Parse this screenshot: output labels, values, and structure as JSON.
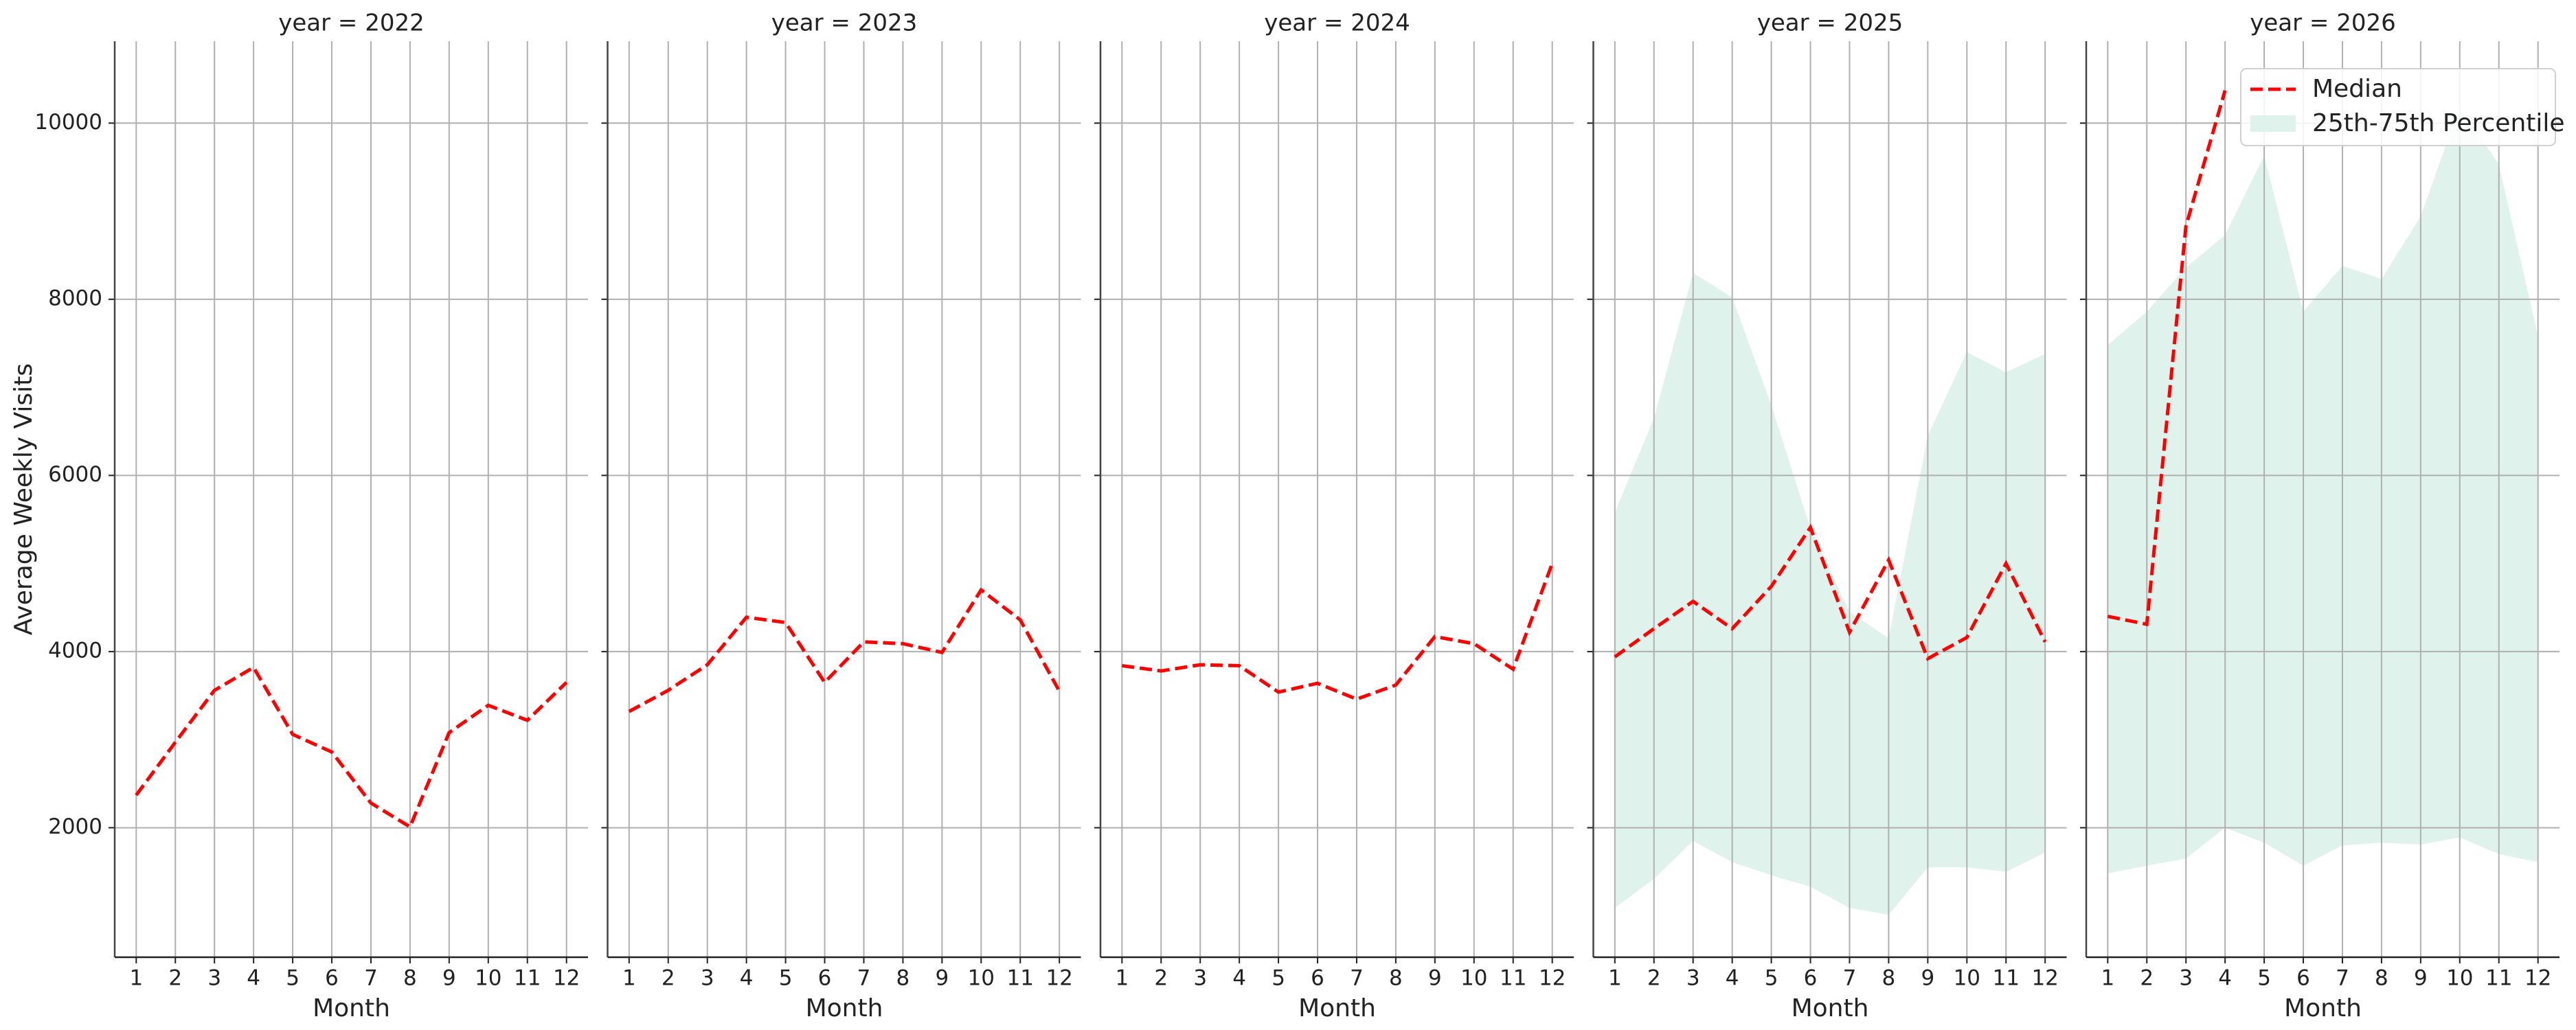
{
  "chart_data": [
    {
      "type": "line",
      "title": "year = 2022",
      "xlabel": "Month",
      "ylabel": "Average Weekly Visits",
      "x": [
        1,
        2,
        3,
        4,
        5,
        6,
        7,
        8,
        9,
        10,
        11,
        12
      ],
      "xlim": [
        0.45,
        12.55
      ],
      "xticks": [
        1,
        2,
        3,
        4,
        5,
        6,
        7,
        8,
        9,
        10,
        11,
        12
      ],
      "ylim": [
        530,
        10930
      ],
      "yticks": [
        2000,
        4000,
        6000,
        8000,
        10000
      ],
      "show_ytick_labels": true,
      "grid": true,
      "series": [
        {
          "color": "#ff0000",
          "values": [
            2370,
            2970,
            3560,
            3820,
            3060,
            2860,
            2280,
            2010,
            3080,
            3390,
            3220,
            3650
          ]
        }
      ]
    },
    {
      "type": "line",
      "title": "year = 2023",
      "xlabel": "Month",
      "x": [
        1,
        2,
        3,
        4,
        5,
        6,
        7,
        8,
        9,
        10,
        11,
        12
      ],
      "xlim": [
        0.45,
        12.55
      ],
      "xticks": [
        1,
        2,
        3,
        4,
        5,
        6,
        7,
        8,
        9,
        10,
        11,
        12
      ],
      "ylim": [
        530,
        10930
      ],
      "yticks": [
        2000,
        4000,
        6000,
        8000,
        10000
      ],
      "show_ytick_labels": false,
      "grid": true,
      "series": [
        {
          "color": "#ff0000",
          "values": [
            3320,
            3560,
            3850,
            4390,
            4330,
            3650,
            4110,
            4090,
            3990,
            4700,
            4360,
            3550
          ]
        }
      ]
    },
    {
      "type": "line",
      "title": "year = 2024",
      "xlabel": "Month",
      "x": [
        1,
        2,
        3,
        4,
        5,
        6,
        7,
        8,
        9,
        10,
        11,
        12
      ],
      "xlim": [
        0.45,
        12.55
      ],
      "xticks": [
        1,
        2,
        3,
        4,
        5,
        6,
        7,
        8,
        9,
        10,
        11,
        12
      ],
      "ylim": [
        530,
        10930
      ],
      "yticks": [
        2000,
        4000,
        6000,
        8000,
        10000
      ],
      "show_ytick_labels": false,
      "grid": true,
      "series": [
        {
          "color": "#ff0000",
          "values": [
            3840,
            3780,
            3850,
            3840,
            3540,
            3640,
            3460,
            3620,
            4170,
            4090,
            3800,
            5000
          ]
        }
      ]
    },
    {
      "type": "line",
      "title": "year = 2025",
      "xlabel": "Month",
      "x": [
        1,
        2,
        3,
        4,
        5,
        6,
        7,
        8,
        9,
        10,
        11,
        12
      ],
      "xlim": [
        0.45,
        12.55
      ],
      "xticks": [
        1,
        2,
        3,
        4,
        5,
        6,
        7,
        8,
        9,
        10,
        11,
        12
      ],
      "ylim": [
        530,
        10930
      ],
      "yticks": [
        2000,
        4000,
        6000,
        8000,
        10000
      ],
      "show_ytick_labels": false,
      "grid": true,
      "band": {
        "color": "#dff2ec",
        "lower": [
          1090,
          1420,
          1850,
          1610,
          1460,
          1330,
          1090,
          1010,
          1550,
          1550,
          1500,
          1720
        ],
        "upper": [
          5580,
          6650,
          8300,
          8020,
          6800,
          5400,
          4450,
          4150,
          6450,
          7400,
          7170,
          7380
        ]
      },
      "series": [
        {
          "color": "#ff0000",
          "values": [
            3940,
            4260,
            4570,
            4260,
            4740,
            5410,
            4220,
            5040,
            3920,
            4160,
            5000,
            4110
          ]
        }
      ]
    },
    {
      "type": "line",
      "title": "year = 2026",
      "xlabel": "Month",
      "x": [
        1,
        2,
        3,
        4,
        5,
        6,
        7,
        8,
        9,
        10,
        11,
        12
      ],
      "xlim": [
        0.45,
        12.55
      ],
      "xticks": [
        1,
        2,
        3,
        4,
        5,
        6,
        7,
        8,
        9,
        10,
        11,
        12
      ],
      "ylim": [
        530,
        10930
      ],
      "yticks": [
        2000,
        4000,
        6000,
        8000,
        10000
      ],
      "show_ytick_labels": false,
      "grid": true,
      "legend": "upper right",
      "band": {
        "name": "25th-75th Percentile",
        "color": "#dff2ec",
        "lower": [
          1480,
          1570,
          1650,
          2000,
          1830,
          1570,
          1800,
          1830,
          1810,
          1890,
          1700,
          1610
        ],
        "upper": [
          7480,
          7860,
          8360,
          8730,
          9630,
          7860,
          8380,
          8230,
          8940,
          10190,
          9530,
          7580
        ]
      },
      "series": [
        {
          "name": "Median",
          "color": "#ff0000",
          "values": [
            4400,
            4310,
            8830,
            10370,
            null,
            null,
            null,
            null,
            null,
            null,
            null,
            null
          ]
        }
      ]
    }
  ]
}
